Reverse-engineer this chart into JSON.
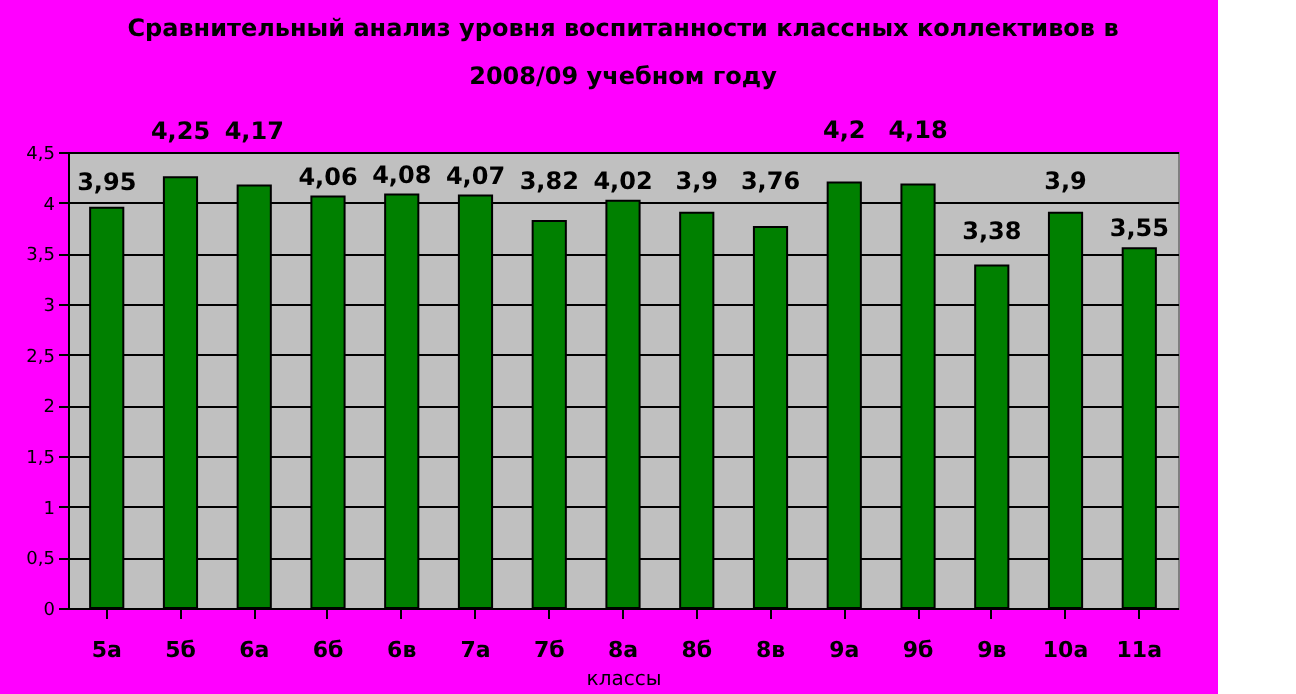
{
  "chart_data": {
    "type": "bar",
    "title": [
      "Сравнительный анализ уровня воспитанности классных коллективов в",
      "2008/09 учебном году"
    ],
    "xlabel": "классы",
    "categories": [
      "5а",
      "5б",
      "6а",
      "6б",
      "6в",
      "7а",
      "7б",
      "8а",
      "8б",
      "8в",
      "9а",
      "9б",
      "9в",
      "10а",
      "11а"
    ],
    "values": [
      3.95,
      4.25,
      4.17,
      4.06,
      4.08,
      4.07,
      3.82,
      4.02,
      3.9,
      3.76,
      4.2,
      4.18,
      3.38,
      3.9,
      3.55
    ],
    "value_labels": [
      "3,95",
      "4,25",
      "4,17",
      "4,06",
      "4,08",
      "4,07",
      "3,82",
      "4,02",
      "3,9",
      "3,76",
      "4,2",
      "4,18",
      "3,38",
      "3,9",
      "3,55"
    ],
    "color": "#008000",
    "ylim": [
      0,
      4.5
    ],
    "yticks": [
      0,
      {
        "value": 0.5,
        "label": "0,5"
      },
      1,
      {
        "value": 1.5,
        "label": "1,5"
      },
      2,
      {
        "value": 2.5,
        "label": "2,5"
      },
      3,
      {
        "value": 3.5,
        "label": "3,5"
      },
      4,
      {
        "value": 4.5,
        "label": "4,5"
      }
    ],
    "grid": "y"
  }
}
